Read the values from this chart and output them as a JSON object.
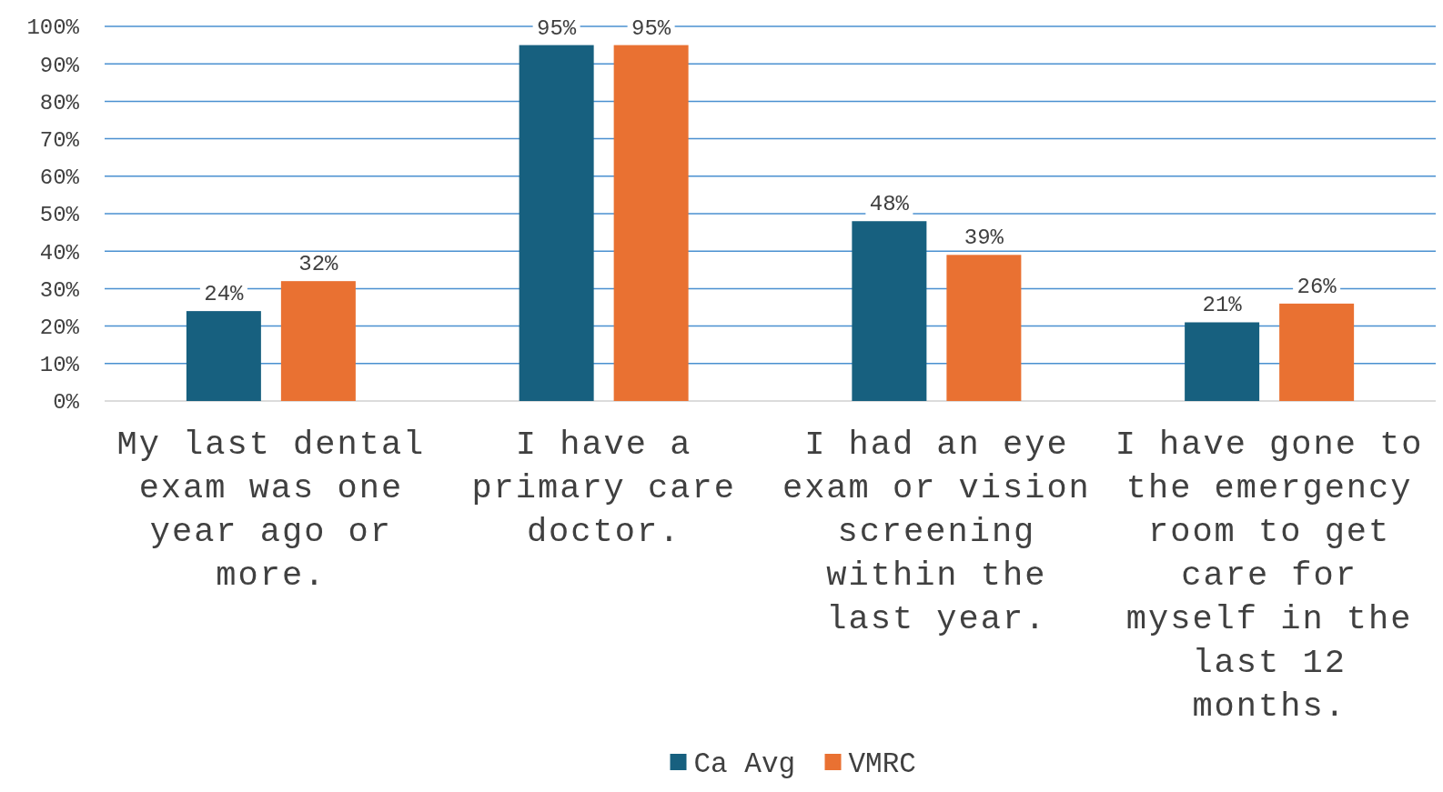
{
  "chart_data": {
    "type": "bar",
    "categories": [
      "My last dental exam was one year ago or more.",
      "I have a primary care doctor.",
      "I had an eye exam or vision screening within the last year.",
      "I have gone to the emergency room to get care for myself in the last 12 months."
    ],
    "series": [
      {
        "name": "Ca Avg",
        "color": "#17607f",
        "values": [
          24,
          95,
          48,
          21
        ],
        "value_labels": [
          "24%",
          "95%",
          "48%",
          "21%"
        ]
      },
      {
        "name": "VMRC",
        "color": "#e97132",
        "values": [
          32,
          95,
          39,
          26
        ],
        "value_labels": [
          "32%",
          "95%",
          "39%",
          "26%"
        ]
      }
    ],
    "ylim": [
      0,
      100
    ],
    "yticks": [
      {
        "value": 0,
        "label": "0%"
      },
      {
        "value": 10,
        "label": "10%"
      },
      {
        "value": 20,
        "label": "20%"
      },
      {
        "value": 30,
        "label": "30%"
      },
      {
        "value": 40,
        "label": "40%"
      },
      {
        "value": 50,
        "label": "50%"
      },
      {
        "value": 60,
        "label": "60%"
      },
      {
        "value": 70,
        "label": "70%"
      },
      {
        "value": 80,
        "label": "80%"
      },
      {
        "value": 90,
        "label": "90%"
      },
      {
        "value": 100,
        "label": "100%"
      }
    ],
    "grid": "y",
    "legend": "bottom"
  }
}
